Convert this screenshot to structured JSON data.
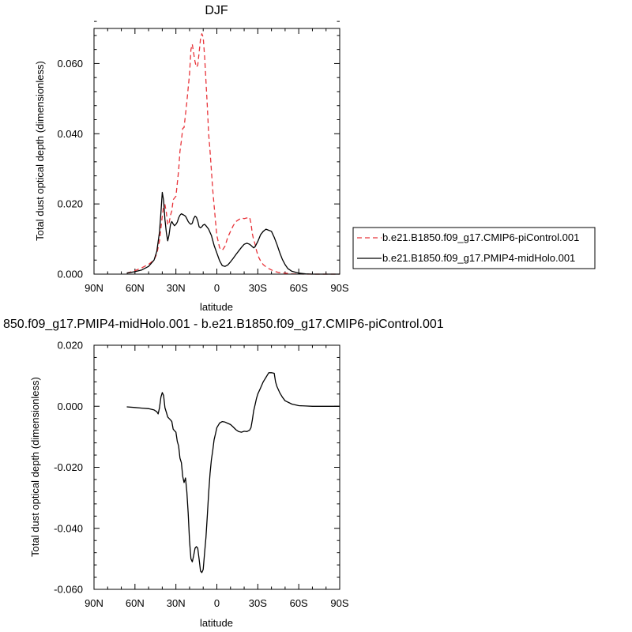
{
  "chart_data": [
    {
      "type": "line",
      "title": "DJF",
      "xlabel": "latitude",
      "ylabel": "Total dust optical depth (dimensionless)",
      "x_tick_labels": [
        "90N",
        "60N",
        "30N",
        "0",
        "30S",
        "60S",
        "90S"
      ],
      "x_ticks": [
        90,
        60,
        30,
        0,
        -30,
        -60,
        -90
      ],
      "xlim": [
        90,
        -90
      ],
      "ylim": [
        0.0,
        0.07
      ],
      "y_tick_labels": [
        "0.000",
        "0.020",
        "0.040",
        "0.060"
      ],
      "y_ticks": [
        0.0,
        0.02,
        0.04,
        0.06
      ],
      "legend_position": "right",
      "series": [
        {
          "name": "b.e21.B1850.f09_g17.CMIP6-piControl.001",
          "color": "#e8343a",
          "dash": "dashed",
          "x": [
            66,
            60,
            55,
            50,
            46,
            44,
            42,
            40,
            39,
            38,
            37,
            36,
            35,
            34,
            33,
            32,
            30,
            28,
            27,
            26,
            25,
            24,
            22,
            20,
            19,
            18,
            17,
            16,
            15,
            14,
            13,
            12,
            11,
            10,
            9,
            8,
            7,
            6,
            5,
            3,
            1,
            0,
            -2,
            -4,
            -6,
            -8,
            -10,
            -12,
            -14,
            -16,
            -18,
            -20,
            -22,
            -24,
            -25,
            -26,
            -27,
            -28,
            -29,
            -30,
            -31,
            -32,
            -34,
            -36,
            -38,
            -40,
            -42,
            -45,
            -50,
            -55,
            -60,
            -65,
            -70,
            -80,
            -90
          ],
          "y": [
            0.0003,
            0.001,
            0.0018,
            0.0028,
            0.004,
            0.0058,
            0.0095,
            0.0165,
            0.0193,
            0.0198,
            0.0175,
            0.014,
            0.0145,
            0.0168,
            0.018,
            0.0212,
            0.0222,
            0.0295,
            0.035,
            0.038,
            0.0415,
            0.0418,
            0.049,
            0.057,
            0.064,
            0.0655,
            0.063,
            0.0605,
            0.059,
            0.0595,
            0.063,
            0.067,
            0.0685,
            0.0675,
            0.062,
            0.055,
            0.048,
            0.04,
            0.035,
            0.024,
            0.015,
            0.011,
            0.0075,
            0.0068,
            0.008,
            0.0105,
            0.0122,
            0.0138,
            0.015,
            0.0155,
            0.016,
            0.0158,
            0.016,
            0.0162,
            0.0145,
            0.0115,
            0.0098,
            0.0085,
            0.0068,
            0.0055,
            0.0045,
            0.0038,
            0.0027,
            0.0021,
            0.0016,
            0.0012,
            0.0008,
            0.0005,
            0.0003,
            0.0001,
            5e-05,
            0.0,
            0.0,
            0.0,
            0.0
          ]
        },
        {
          "name": "b.e21.B1850.f09_g17.PMIP4-midHolo.001",
          "color": "#000000",
          "dash": "solid",
          "x": [
            66,
            60,
            55,
            50,
            46,
            44,
            42,
            41,
            40,
            39,
            38,
            37,
            36,
            35,
            34,
            33,
            32,
            31,
            30,
            29,
            28,
            27,
            26,
            25,
            24,
            23,
            22,
            21,
            20,
            19,
            18,
            17,
            16,
            15,
            14,
            13,
            12,
            11,
            10,
            9,
            8,
            6,
            4,
            2,
            0,
            -2,
            -4,
            -6,
            -8,
            -10,
            -12,
            -14,
            -16,
            -18,
            -20,
            -22,
            -24,
            -25,
            -26,
            -27,
            -28,
            -30,
            -32,
            -34,
            -36,
            -38,
            -40,
            -42,
            -44,
            -46,
            -48,
            -50,
            -52,
            -55,
            -60,
            -65,
            -70,
            -80,
            -90
          ],
          "y": [
            0.0003,
            0.0007,
            0.0012,
            0.0022,
            0.004,
            0.0065,
            0.012,
            0.0175,
            0.0233,
            0.021,
            0.0155,
            0.0118,
            0.0095,
            0.0112,
            0.0142,
            0.015,
            0.0143,
            0.0138,
            0.0142,
            0.0148,
            0.016,
            0.0168,
            0.0172,
            0.017,
            0.0168,
            0.0165,
            0.0158,
            0.015,
            0.0145,
            0.0142,
            0.0145,
            0.0158,
            0.0165,
            0.0162,
            0.0152,
            0.0135,
            0.0132,
            0.0135,
            0.014,
            0.0142,
            0.0138,
            0.0128,
            0.011,
            0.0082,
            0.006,
            0.0038,
            0.0024,
            0.0022,
            0.0026,
            0.0035,
            0.0045,
            0.0056,
            0.0066,
            0.0076,
            0.0085,
            0.0088,
            0.0085,
            0.0082,
            0.0078,
            0.0075,
            0.0078,
            0.0093,
            0.0112,
            0.0122,
            0.0128,
            0.0125,
            0.0122,
            0.0105,
            0.0085,
            0.0062,
            0.0042,
            0.0027,
            0.0016,
            0.0008,
            0.0003,
            0.0001,
            0.0,
            0.0,
            0.0
          ]
        }
      ]
    },
    {
      "type": "line",
      "title": "850.f09_g17.PMIP4-midHolo.001 - b.e21.B1850.f09_g17.CMIP6-piControl.001",
      "xlabel": "latitude",
      "ylabel": "Total dust optical depth (dimensionless)",
      "x_tick_labels": [
        "90N",
        "60N",
        "30N",
        "0",
        "30S",
        "60S",
        "90S"
      ],
      "x_ticks": [
        90,
        60,
        30,
        0,
        -30,
        -60,
        -90
      ],
      "xlim": [
        90,
        -90
      ],
      "ylim": [
        -0.06,
        0.02
      ],
      "y_tick_labels": [
        "0.020",
        "0.000",
        "-0.020",
        "-0.040",
        "-0.060"
      ],
      "y_ticks": [
        0.02,
        0.0,
        -0.02,
        -0.04,
        -0.06
      ],
      "series": [
        {
          "color": "#000000",
          "dash": "solid",
          "x": [
            66,
            60,
            55,
            50,
            46,
            44,
            43,
            42,
            41,
            40,
            39,
            38,
            37,
            36,
            35,
            34,
            33,
            32,
            31,
            30,
            29,
            28,
            27,
            26,
            25,
            24,
            23,
            22,
            21,
            20,
            19,
            18,
            17,
            16,
            15,
            14,
            13,
            12,
            11,
            10,
            9,
            8,
            7,
            6,
            5,
            4,
            3,
            2,
            1,
            0,
            -2,
            -4,
            -6,
            -8,
            -10,
            -12,
            -14,
            -16,
            -18,
            -20,
            -22,
            -24,
            -25,
            -26,
            -27,
            -28,
            -29,
            -30,
            -32,
            -34,
            -36,
            -38,
            -40,
            -42,
            -43,
            -44,
            -46,
            -48,
            -50,
            -55,
            -60,
            -65,
            -70,
            -80,
            -90
          ],
          "y": [
            -0.0002,
            -0.0004,
            -0.0006,
            -0.0008,
            -0.0012,
            -0.0018,
            -0.0025,
            -0.0005,
            0.003,
            0.0045,
            0.0035,
            -0.0005,
            -0.002,
            -0.0035,
            -0.004,
            -0.0045,
            -0.005,
            -0.0075,
            -0.008,
            -0.0085,
            -0.0115,
            -0.013,
            -0.017,
            -0.0185,
            -0.023,
            -0.025,
            -0.0235,
            -0.028,
            -0.035,
            -0.044,
            -0.05,
            -0.051,
            -0.049,
            -0.0465,
            -0.046,
            -0.0465,
            -0.05,
            -0.054,
            -0.0545,
            -0.0535,
            -0.048,
            -0.043,
            -0.036,
            -0.0285,
            -0.022,
            -0.0175,
            -0.0145,
            -0.011,
            -0.009,
            -0.007,
            -0.0055,
            -0.005,
            -0.0052,
            -0.0056,
            -0.006,
            -0.0068,
            -0.0077,
            -0.0083,
            -0.0085,
            -0.0082,
            -0.0083,
            -0.0078,
            -0.007,
            -0.0045,
            -0.0015,
            0.0005,
            0.0025,
            0.004,
            0.006,
            0.008,
            0.0095,
            0.011,
            0.011,
            0.0108,
            0.008,
            0.0065,
            0.0045,
            0.003,
            0.0018,
            0.0007,
            0.0002,
            0.0001,
            0.0,
            0.0,
            0.0
          ]
        }
      ]
    }
  ]
}
